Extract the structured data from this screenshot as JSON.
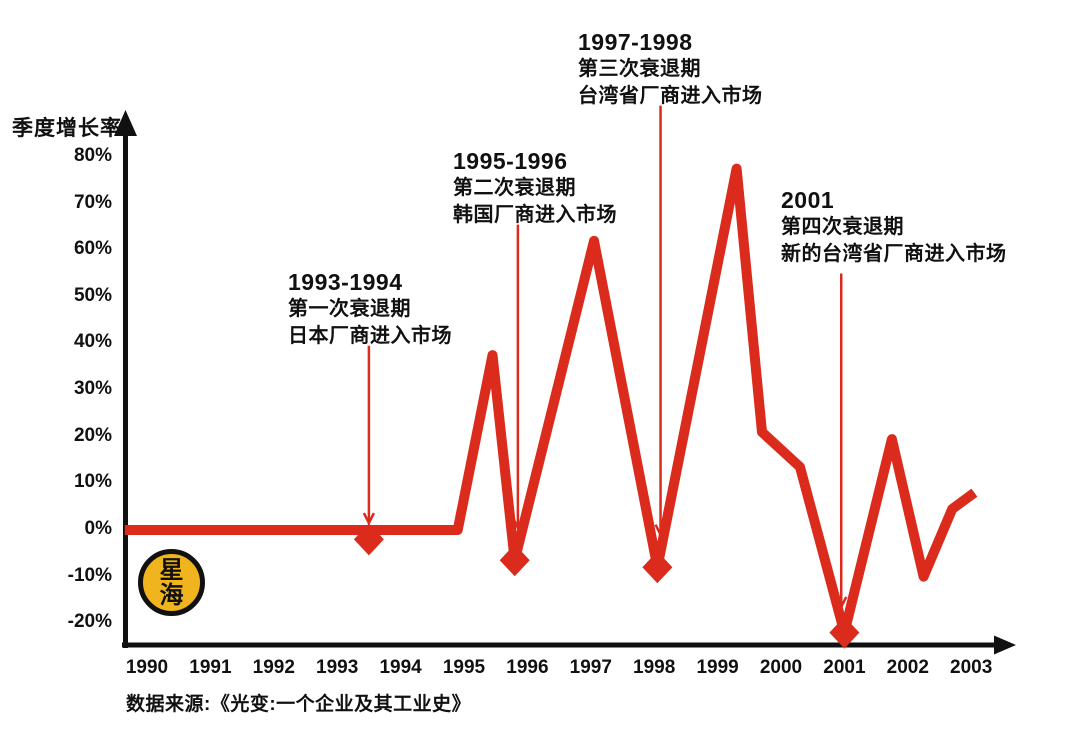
{
  "page": {
    "background": "#ffffff"
  },
  "colors": {
    "line_red": "#DB2B1C",
    "axis_black": "#111111",
    "text_black": "#111111",
    "logo_yellow": "#F0B41E"
  },
  "axis_labels": {
    "y_axis_title": "季度增长率"
  },
  "logo": {
    "char_top": "星",
    "char_bottom": "海"
  },
  "source_note": "数据来源:《光变:一个企业及其工业史》",
  "chart_data": {
    "type": "line",
    "title": "",
    "xlabel": "",
    "ylabel": "季度增长率",
    "grid": false,
    "legend_position": "none",
    "xlim": [
      1989.6,
      2003.7
    ],
    "ylim": [
      -27,
      90
    ],
    "x_ticks": [
      1990,
      1991,
      1992,
      1993,
      1994,
      1995,
      1996,
      1997,
      1998,
      1999,
      2000,
      2001,
      2002,
      2003
    ],
    "y_tick_values": [
      80,
      70,
      60,
      50,
      40,
      30,
      20,
      10,
      0,
      -10,
      -20
    ],
    "y_tick_labels": [
      "80%",
      "70%",
      "60%",
      "50%",
      "40%",
      "30%",
      "20%",
      "10%",
      "0%",
      "-10%",
      "-20%"
    ],
    "series": [
      {
        "name": "季度增长率",
        "color": "#DB2B1C",
        "points": [
          [
            1989.65,
            0
          ],
          [
            1994.9,
            0
          ],
          [
            1995.45,
            37.5
          ],
          [
            1995.8,
            -6.5
          ],
          [
            1997.05,
            62
          ],
          [
            1998.05,
            -8
          ],
          [
            1999.3,
            77.5
          ],
          [
            1999.7,
            21
          ],
          [
            2000.3,
            13.5
          ],
          [
            2001.0,
            -22
          ],
          [
            2001.75,
            19.5
          ],
          [
            2002.25,
            -10
          ],
          [
            2002.7,
            4.5
          ],
          [
            2003.05,
            8
          ]
        ]
      }
    ],
    "markers": {
      "shape": "diamond",
      "color": "#DB2B1C",
      "points": [
        [
          1993.5,
          -2
        ],
        [
          1995.8,
          -6.5
        ],
        [
          1998.05,
          -8
        ],
        [
          2001.0,
          -22
        ]
      ]
    },
    "annotations": [
      {
        "title": "1993-1994",
        "lines": [
          "第一次衰退期",
          "日本厂商进入市场"
        ],
        "arrow_x": 1993.5,
        "arrow_y_from": 39.5,
        "arrow_y_to": 1.5
      },
      {
        "title": "1995-1996",
        "lines": [
          "第二次衰退期",
          "韩国厂商进入市场"
        ],
        "arrow_x": 1995.85,
        "arrow_y_from": 65.5,
        "arrow_y_to": 0.5
      },
      {
        "title": "1997-1998",
        "lines": [
          "第三次衰退期",
          "台湾省厂商进入市场"
        ],
        "arrow_x": 1998.1,
        "arrow_y_from": 91,
        "arrow_y_to": -1
      },
      {
        "title": "2001",
        "lines": [
          "第四次衰退期",
          "新的台湾省厂商进入市场"
        ],
        "arrow_x": 2000.95,
        "arrow_y_from": 55,
        "arrow_y_to": -16.5
      }
    ],
    "source": "数据来源:《光变:一个企业及其工业史》"
  }
}
